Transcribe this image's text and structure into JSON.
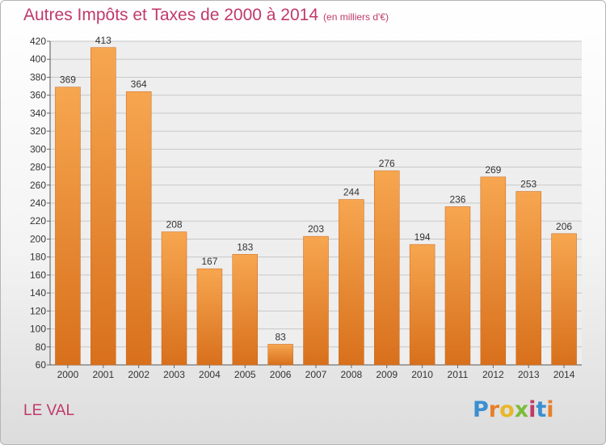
{
  "chart_data": {
    "type": "bar",
    "title": "Autres Impôts et Taxes de 2000 à 2014",
    "subtitle": "(en milliers d'€)",
    "categories": [
      "2000",
      "2001",
      "2002",
      "2003",
      "2004",
      "2005",
      "2006",
      "2007",
      "2008",
      "2009",
      "2010",
      "2011",
      "2012",
      "2013",
      "2014"
    ],
    "values": [
      369,
      413,
      364,
      208,
      167,
      183,
      83,
      203,
      244,
      276,
      194,
      236,
      269,
      253,
      206
    ],
    "ylim": [
      60,
      420
    ],
    "ytick_step": 20,
    "grid": true,
    "bar_color_top": "#f7a650",
    "bar_color_bottom": "#d8701c",
    "xlabel": "",
    "ylabel": ""
  },
  "footer": {
    "commune": "LE VAL",
    "logo_text": "Proxiti"
  },
  "colors": {
    "title": "#c0396b",
    "logo_letters": [
      "#3a8fd1",
      "#e87f2a",
      "#e8b72a",
      "#7dbb3a",
      "#c0396b",
      "#3a8fd1",
      "#e87f2a"
    ]
  }
}
